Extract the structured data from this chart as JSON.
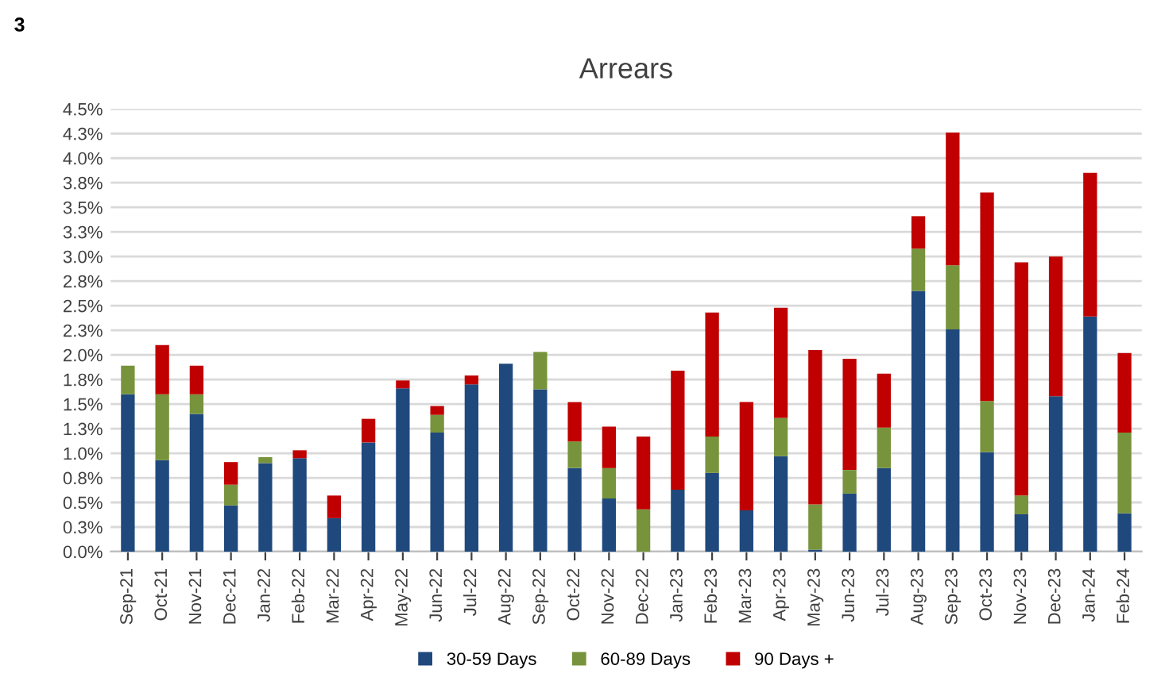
{
  "chart_data": {
    "type": "bar",
    "title": "Arrears",
    "stacked": true,
    "grid": "y",
    "legend": "bottom",
    "annotations": [
      "3"
    ],
    "categories": [
      "Sep-21",
      "Oct-21",
      "Nov-21",
      "Dec-21",
      "Jan-22",
      "Feb-22",
      "Mar-22",
      "Apr-22",
      "May-22",
      "Jun-22",
      "Jul-22",
      "Aug-22",
      "Sep-22",
      "Oct-22",
      "Nov-22",
      "Dec-22",
      "Jan-23",
      "Feb-23",
      "Mar-23",
      "Apr-23",
      "May-23",
      "Jun-23",
      "Jul-23",
      "Aug-23",
      "Sep-23",
      "Oct-23",
      "Nov-23",
      "Dec-23",
      "Jan-24",
      "Feb-24"
    ],
    "series": [
      {
        "name": "30-59 Days",
        "color": "#1f497d",
        "values": [
          1.6,
          0.93,
          1.4,
          0.47,
          0.9,
          0.95,
          0.34,
          1.11,
          1.66,
          1.21,
          1.7,
          1.91,
          1.65,
          0.85,
          0.54,
          0,
          0.63,
          0.8,
          0.42,
          0.97,
          0.02,
          0.59,
          0.85,
          2.65,
          2.26,
          1.01,
          0.38,
          1.58,
          2.39,
          0.39
        ]
      },
      {
        "name": "60-89 Days",
        "color": "#77933c",
        "values": [
          0.29,
          0.67,
          0.2,
          0.21,
          0.06,
          0,
          0,
          0,
          0,
          0.18,
          0,
          0,
          0.38,
          0.27,
          0.31,
          0.43,
          0,
          0.37,
          0,
          0.39,
          0.46,
          0.24,
          0.41,
          0.43,
          0.65,
          0.52,
          0.19,
          0,
          0,
          0.82
        ]
      },
      {
        "name": "90 Days +",
        "color": "#c00000",
        "values": [
          0,
          0.5,
          0.29,
          0.23,
          0,
          0.08,
          0.23,
          0.24,
          0.08,
          0.09,
          0.09,
          0,
          0,
          0.4,
          0.42,
          0.74,
          1.21,
          1.26,
          1.1,
          1.12,
          1.57,
          1.13,
          0.55,
          0.33,
          1.35,
          2.12,
          2.37,
          1.42,
          1.46,
          0.81
        ]
      }
    ],
    "ylim": [
      0,
      4.5
    ],
    "yticks": [
      {
        "value": 0,
        "label": "0.0%"
      },
      {
        "value": 0.25,
        "label": "0.3%"
      },
      {
        "value": 0.5,
        "label": "0.5%"
      },
      {
        "value": 0.75,
        "label": "0.8%"
      },
      {
        "value": 1.0,
        "label": "1.0%"
      },
      {
        "value": 1.25,
        "label": "1.3%"
      },
      {
        "value": 1.5,
        "label": "1.5%"
      },
      {
        "value": 1.75,
        "label": "1.8%"
      },
      {
        "value": 2.0,
        "label": "2.0%"
      },
      {
        "value": 2.25,
        "label": "2.3%"
      },
      {
        "value": 2.5,
        "label": "2.5%"
      },
      {
        "value": 2.75,
        "label": "2.8%"
      },
      {
        "value": 3.0,
        "label": "3.0%"
      },
      {
        "value": 3.25,
        "label": "3.3%"
      },
      {
        "value": 3.5,
        "label": "3.5%"
      },
      {
        "value": 3.75,
        "label": "3.8%"
      },
      {
        "value": 4.0,
        "label": "4.0%"
      },
      {
        "value": 4.25,
        "label": "4.3%"
      },
      {
        "value": 4.5,
        "label": "4.5%"
      }
    ]
  }
}
